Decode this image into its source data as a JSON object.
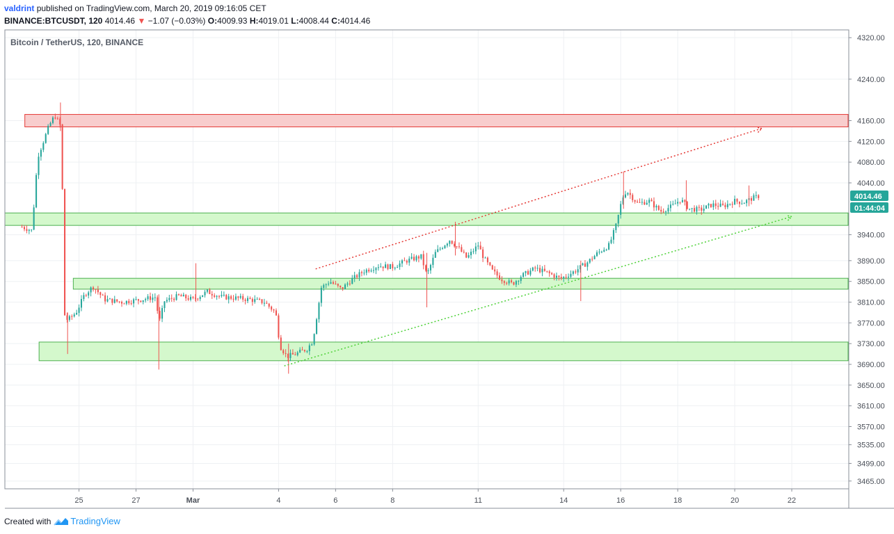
{
  "header": {
    "author": "valdrint",
    "published_text": "published on TradingView.com, March 20, 2019 09:16:05 CET",
    "symbol": "BINANCE:BTCUSDT, 120",
    "last": "4014.46",
    "change": "−1.07 (−0.03%)",
    "open_label": "O:",
    "open": "4009.93",
    "high_label": "H:",
    "high": "4019.01",
    "low_label": "L:",
    "low": "4008.44",
    "close_label": "C:",
    "close": "4014.46"
  },
  "legend": {
    "title": "Bitcoin / TetherUS, 120, BINANCE"
  },
  "price_badges": {
    "last_price": "4014.46",
    "countdown": "01:44:04"
  },
  "footer": {
    "created_with": "Created with",
    "brand": "TradingView"
  },
  "colors": {
    "up": "#26a69a",
    "down": "#ef5350",
    "resistance_fill": "#f8cdcd",
    "resistance_stroke": "#e53935",
    "support_fill": "#d4f8cc",
    "support_stroke": "#4caf50",
    "grid": "#eef0f3",
    "badge": "#26a69a"
  },
  "chart_data": {
    "type": "candlestick",
    "title": "Bitcoin / TetherUS, 120, BINANCE",
    "y_axis": {
      "side": "right",
      "range": [
        3450,
        4335
      ],
      "ticks": [
        4320.0,
        4240.0,
        4160.0,
        4120.0,
        4080.0,
        4040.0,
        3940.0,
        3890.0,
        3850.0,
        3810.0,
        3770.0,
        3730.0,
        3690.0,
        3650.0,
        3610.0,
        3570.0,
        3535.0,
        3499.0,
        3465.0
      ]
    },
    "x_axis": {
      "range_days": [
        22.4,
        52.0
      ],
      "ticks": [
        {
          "day": 25,
          "label": "25"
        },
        {
          "day": 27,
          "label": "27"
        },
        {
          "day": 29,
          "label": "Mar"
        },
        {
          "day": 32,
          "label": "4"
        },
        {
          "day": 34,
          "label": "6"
        },
        {
          "day": 36,
          "label": "8"
        },
        {
          "day": 39,
          "label": "11"
        },
        {
          "day": 42,
          "label": "14"
        },
        {
          "day": 44,
          "label": "16"
        },
        {
          "day": 46,
          "label": "18"
        },
        {
          "day": 48,
          "label": "20"
        },
        {
          "day": 50,
          "label": "22"
        }
      ]
    },
    "price_path": [
      [
        23.0,
        3955
      ],
      [
        23.35,
        3948
      ],
      [
        23.55,
        4090
      ],
      [
        23.75,
        4120
      ],
      [
        23.95,
        4150
      ],
      [
        24.15,
        4170
      ],
      [
        24.4,
        4145
      ],
      [
        24.45,
        3790
      ],
      [
        24.6,
        3775
      ],
      [
        24.9,
        3790
      ],
      [
        25.2,
        3825
      ],
      [
        25.5,
        3840
      ],
      [
        25.9,
        3815
      ],
      [
        26.5,
        3810
      ],
      [
        27.2,
        3815
      ],
      [
        27.7,
        3820
      ],
      [
        27.8,
        3768
      ],
      [
        28.0,
        3812
      ],
      [
        28.5,
        3822
      ],
      [
        29.0,
        3815
      ],
      [
        29.5,
        3830
      ],
      [
        30.0,
        3820
      ],
      [
        30.5,
        3818
      ],
      [
        31.0,
        3815
      ],
      [
        31.5,
        3810
      ],
      [
        31.9,
        3790
      ],
      [
        32.05,
        3725
      ],
      [
        32.3,
        3705
      ],
      [
        32.6,
        3710
      ],
      [
        33.0,
        3720
      ],
      [
        33.2,
        3735
      ],
      [
        33.5,
        3838
      ],
      [
        33.8,
        3850
      ],
      [
        34.2,
        3835
      ],
      [
        34.6,
        3855
      ],
      [
        35.0,
        3870
      ],
      [
        35.5,
        3880
      ],
      [
        36.0,
        3878
      ],
      [
        36.5,
        3890
      ],
      [
        37.0,
        3898
      ],
      [
        37.2,
        3862
      ],
      [
        37.5,
        3905
      ],
      [
        37.8,
        3920
      ],
      [
        38.0,
        3930
      ],
      [
        38.3,
        3915
      ],
      [
        38.6,
        3895
      ],
      [
        39.0,
        3920
      ],
      [
        39.2,
        3895
      ],
      [
        39.5,
        3870
      ],
      [
        39.8,
        3855
      ],
      [
        40.2,
        3845
      ],
      [
        40.5,
        3860
      ],
      [
        41.0,
        3875
      ],
      [
        41.5,
        3865
      ],
      [
        41.9,
        3855
      ],
      [
        42.4,
        3870
      ],
      [
        42.8,
        3885
      ],
      [
        43.2,
        3905
      ],
      [
        43.6,
        3920
      ],
      [
        43.85,
        3960
      ],
      [
        44.05,
        4010
      ],
      [
        44.2,
        4025
      ],
      [
        44.6,
        4000
      ],
      [
        45.0,
        4005
      ],
      [
        45.4,
        3985
      ],
      [
        45.8,
        3995
      ],
      [
        46.1,
        4008
      ],
      [
        46.4,
        3990
      ],
      [
        46.8,
        3988
      ],
      [
        47.2,
        3998
      ],
      [
        47.6,
        3995
      ],
      [
        48.0,
        4005
      ],
      [
        48.3,
        4002
      ],
      [
        48.6,
        4010
      ],
      [
        48.85,
        4014.46
      ]
    ],
    "spikes": [
      {
        "day": 24.35,
        "high": 4195,
        "low": 4140
      },
      {
        "day": 24.6,
        "high": 3790,
        "low": 3710
      },
      {
        "day": 27.8,
        "high": 3825,
        "low": 3680
      },
      {
        "day": 29.1,
        "high": 3885,
        "low": 3810
      },
      {
        "day": 32.35,
        "high": 3730,
        "low": 3672
      },
      {
        "day": 37.2,
        "high": 3905,
        "low": 3800
      },
      {
        "day": 38.2,
        "high": 3965,
        "low": 3900
      },
      {
        "day": 42.6,
        "high": 3890,
        "low": 3812
      },
      {
        "day": 44.1,
        "high": 4062,
        "low": 3990
      },
      {
        "day": 46.3,
        "high": 4045,
        "low": 3985
      },
      {
        "day": 48.5,
        "high": 4035,
        "low": 3995
      }
    ],
    "zones": [
      {
        "kind": "resistance",
        "x1": 23.1,
        "x2": 52.3,
        "price_low": 4148,
        "price_high": 4172
      },
      {
        "kind": "support",
        "x1": 22.4,
        "x2": 52.5,
        "price_low": 3958,
        "price_high": 3982
      },
      {
        "kind": "support",
        "x1": 24.8,
        "x2": 52.5,
        "price_low": 3835,
        "price_high": 3856
      },
      {
        "kind": "support",
        "x1": 23.6,
        "x2": 53.1,
        "price_low": 3697,
        "price_high": 3733
      }
    ],
    "trendlines": [
      {
        "kind": "resistance",
        "x1": 33.3,
        "y1": 3874,
        "x2": 48.95,
        "y2": 4145
      },
      {
        "kind": "support",
        "x1": 32.2,
        "y1": 3687,
        "x2": 50.0,
        "y2": 3975
      }
    ]
  }
}
